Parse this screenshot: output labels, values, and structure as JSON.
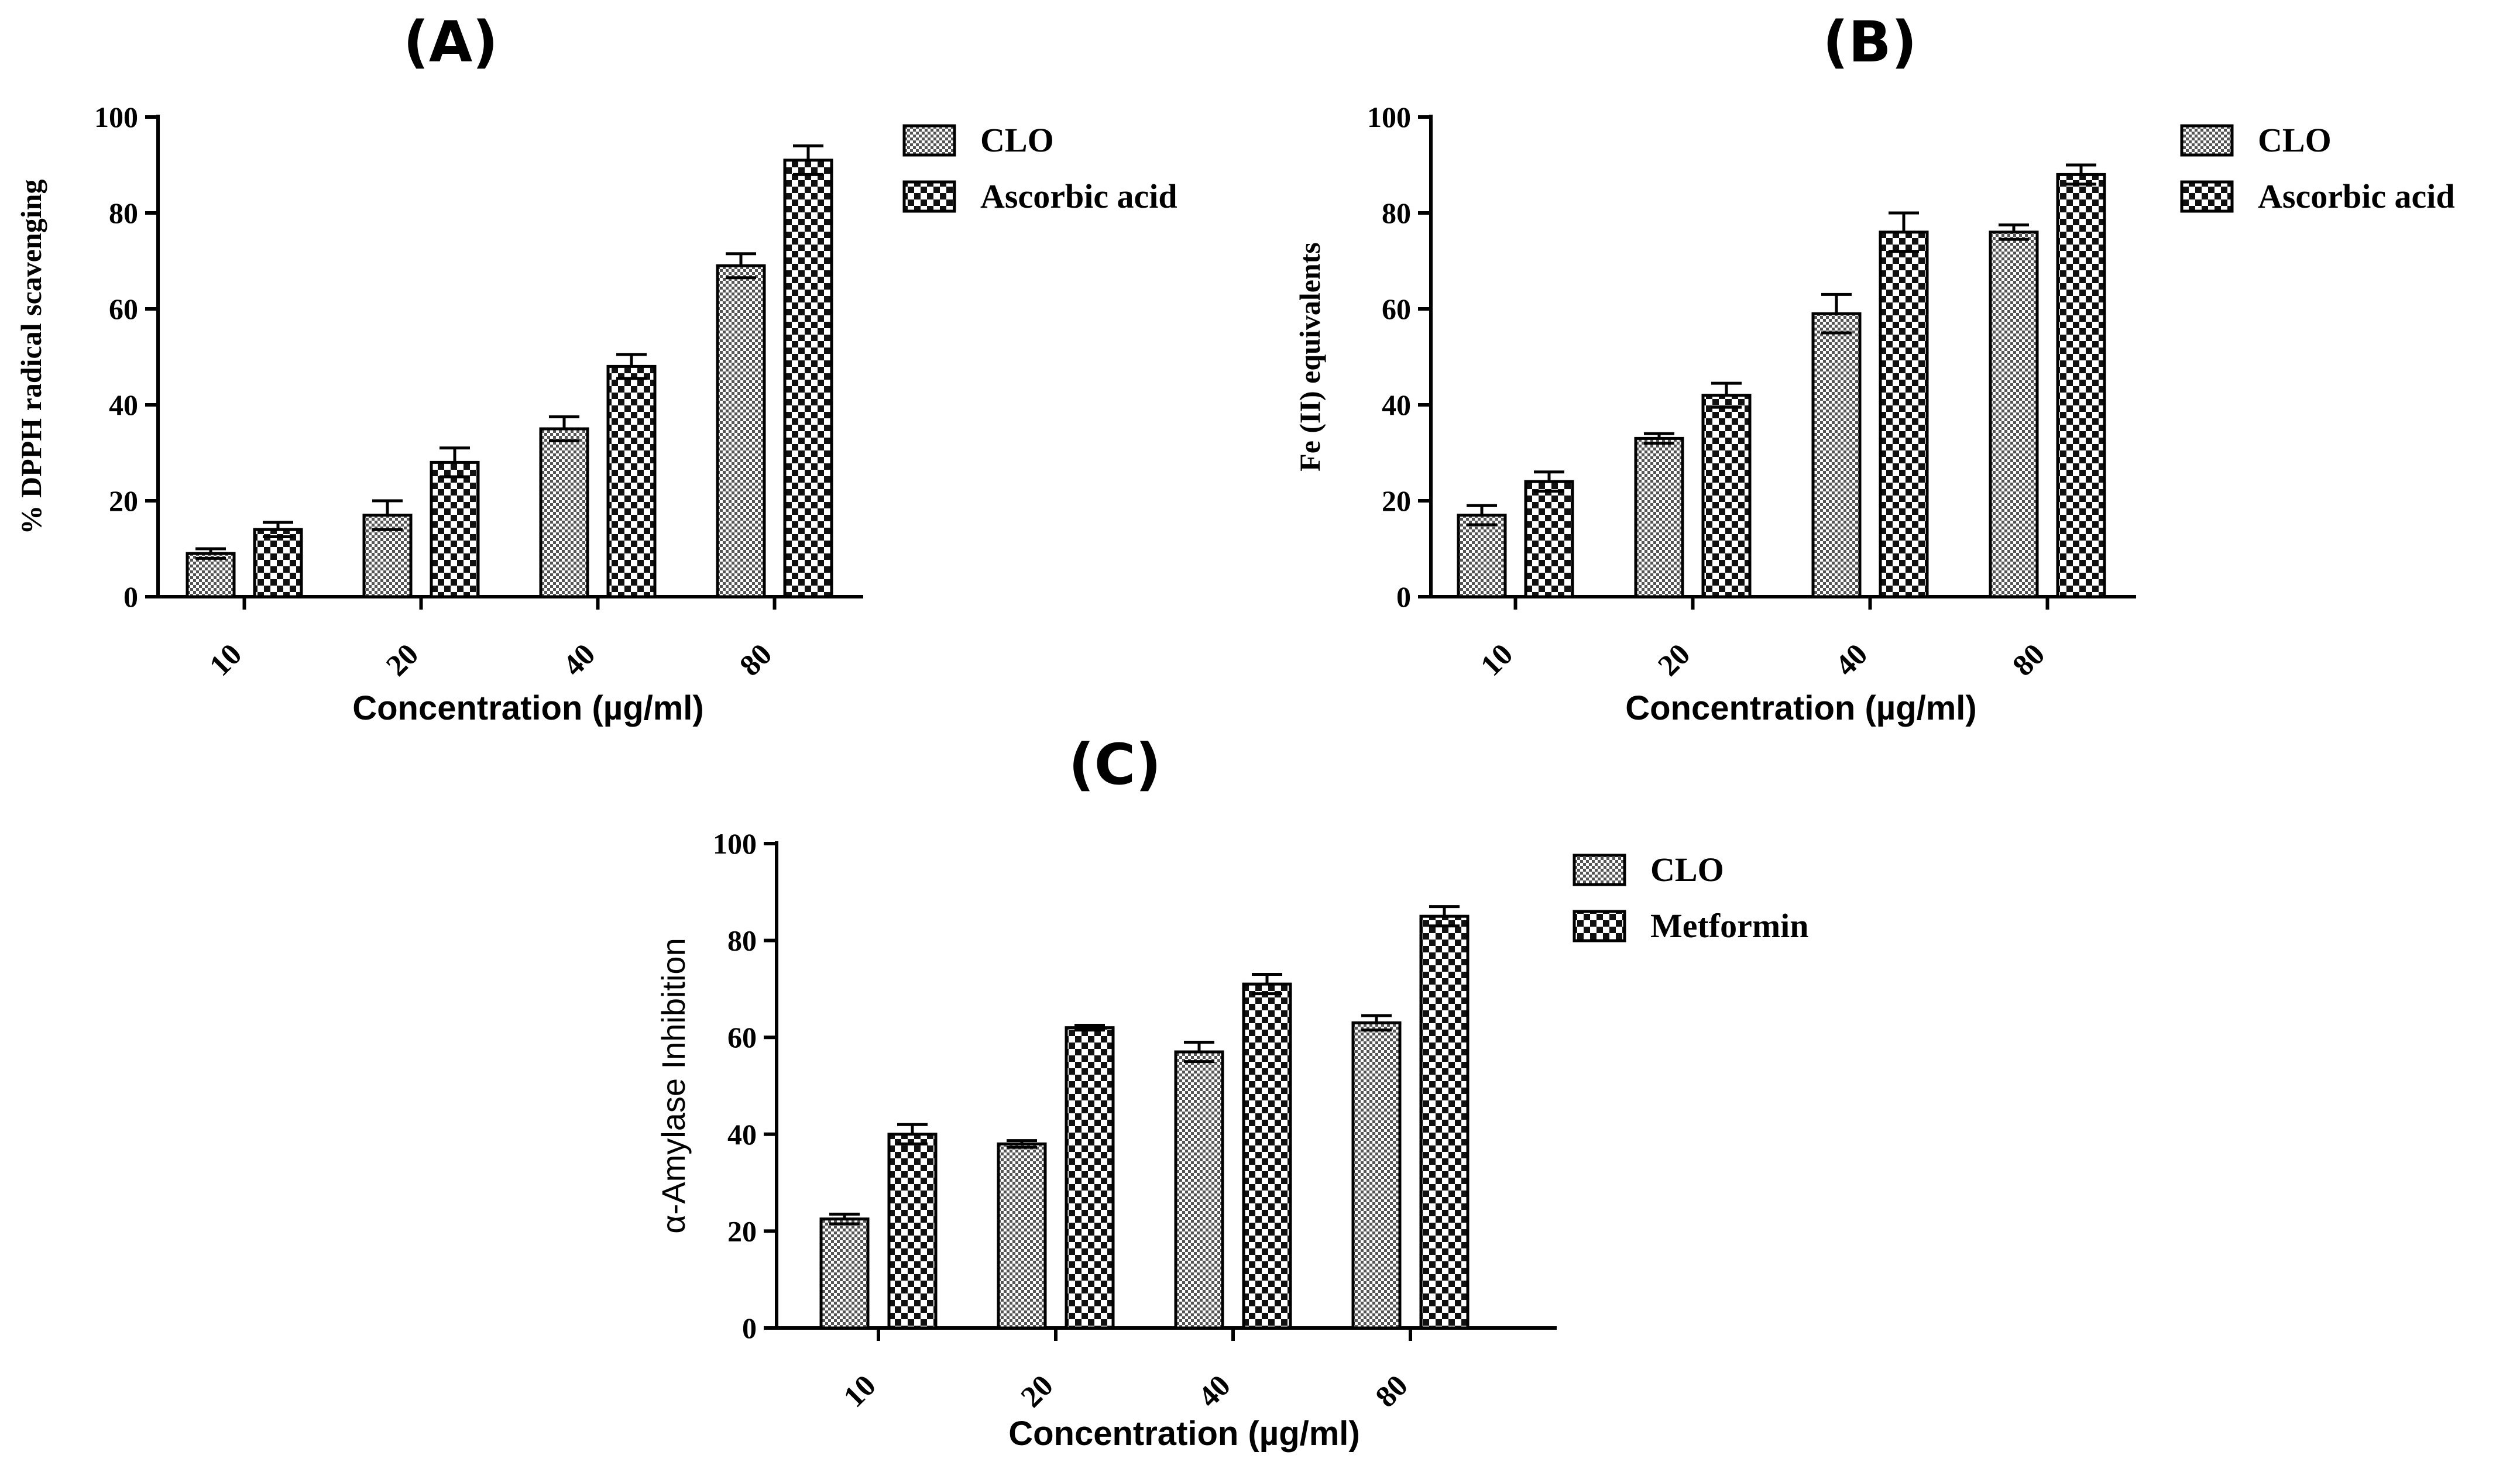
{
  "chart_data": [
    {
      "type": "bar",
      "title": "(A)",
      "xlabel": "Concentration (µg/ml)",
      "ylabel": "% DPPH radical scavenging",
      "categories": [
        "10",
        "20",
        "40",
        "80"
      ],
      "ylim": [
        0,
        100
      ],
      "yticks": [
        "0",
        "20",
        "40",
        "60",
        "80",
        "100"
      ],
      "series": [
        {
          "name": "CLO",
          "values": [
            9,
            17,
            35,
            69
          ],
          "errors": [
            1,
            3,
            2.5,
            2.5
          ],
          "pattern": "fine"
        },
        {
          "name": "Ascorbic acid",
          "values": [
            14,
            28,
            48,
            91
          ],
          "errors": [
            1.5,
            3,
            2.5,
            3
          ],
          "pattern": "coarse"
        }
      ],
      "legend": "top-right"
    },
    {
      "type": "bar",
      "title": "(B)",
      "xlabel": "Concentration (µg/ml)",
      "ylabel": "Fe (II) equivalents",
      "categories": [
        "10",
        "20",
        "40",
        "80"
      ],
      "ylim": [
        0,
        100
      ],
      "yticks": [
        "0",
        "20",
        "40",
        "60",
        "80",
        "100"
      ],
      "series": [
        {
          "name": "CLO",
          "values": [
            17,
            33,
            59,
            76
          ],
          "errors": [
            2,
            1,
            4,
            1.5
          ],
          "pattern": "fine"
        },
        {
          "name": "Ascorbic acid",
          "values": [
            24,
            42,
            76,
            88
          ],
          "errors": [
            2,
            2.5,
            4,
            2
          ],
          "pattern": "coarse"
        }
      ],
      "legend": "top-right"
    },
    {
      "type": "bar",
      "title": "(C)",
      "xlabel": "Concentration (µg/ml)",
      "ylabel": "α-Amylase Inhibition",
      "categories": [
        "10",
        "20",
        "40",
        "80"
      ],
      "ylim": [
        0,
        100
      ],
      "yticks": [
        "0",
        "20",
        "40",
        "60",
        "80",
        "100"
      ],
      "series": [
        {
          "name": "CLO",
          "values": [
            22.5,
            38,
            57,
            63
          ],
          "errors": [
            1,
            0.7,
            2,
            1.5
          ],
          "pattern": "fine"
        },
        {
          "name": "Metformin",
          "values": [
            40,
            62,
            71,
            85
          ],
          "errors": [
            2,
            0.5,
            2,
            2
          ],
          "pattern": "coarse"
        }
      ],
      "legend": "top-right"
    }
  ]
}
